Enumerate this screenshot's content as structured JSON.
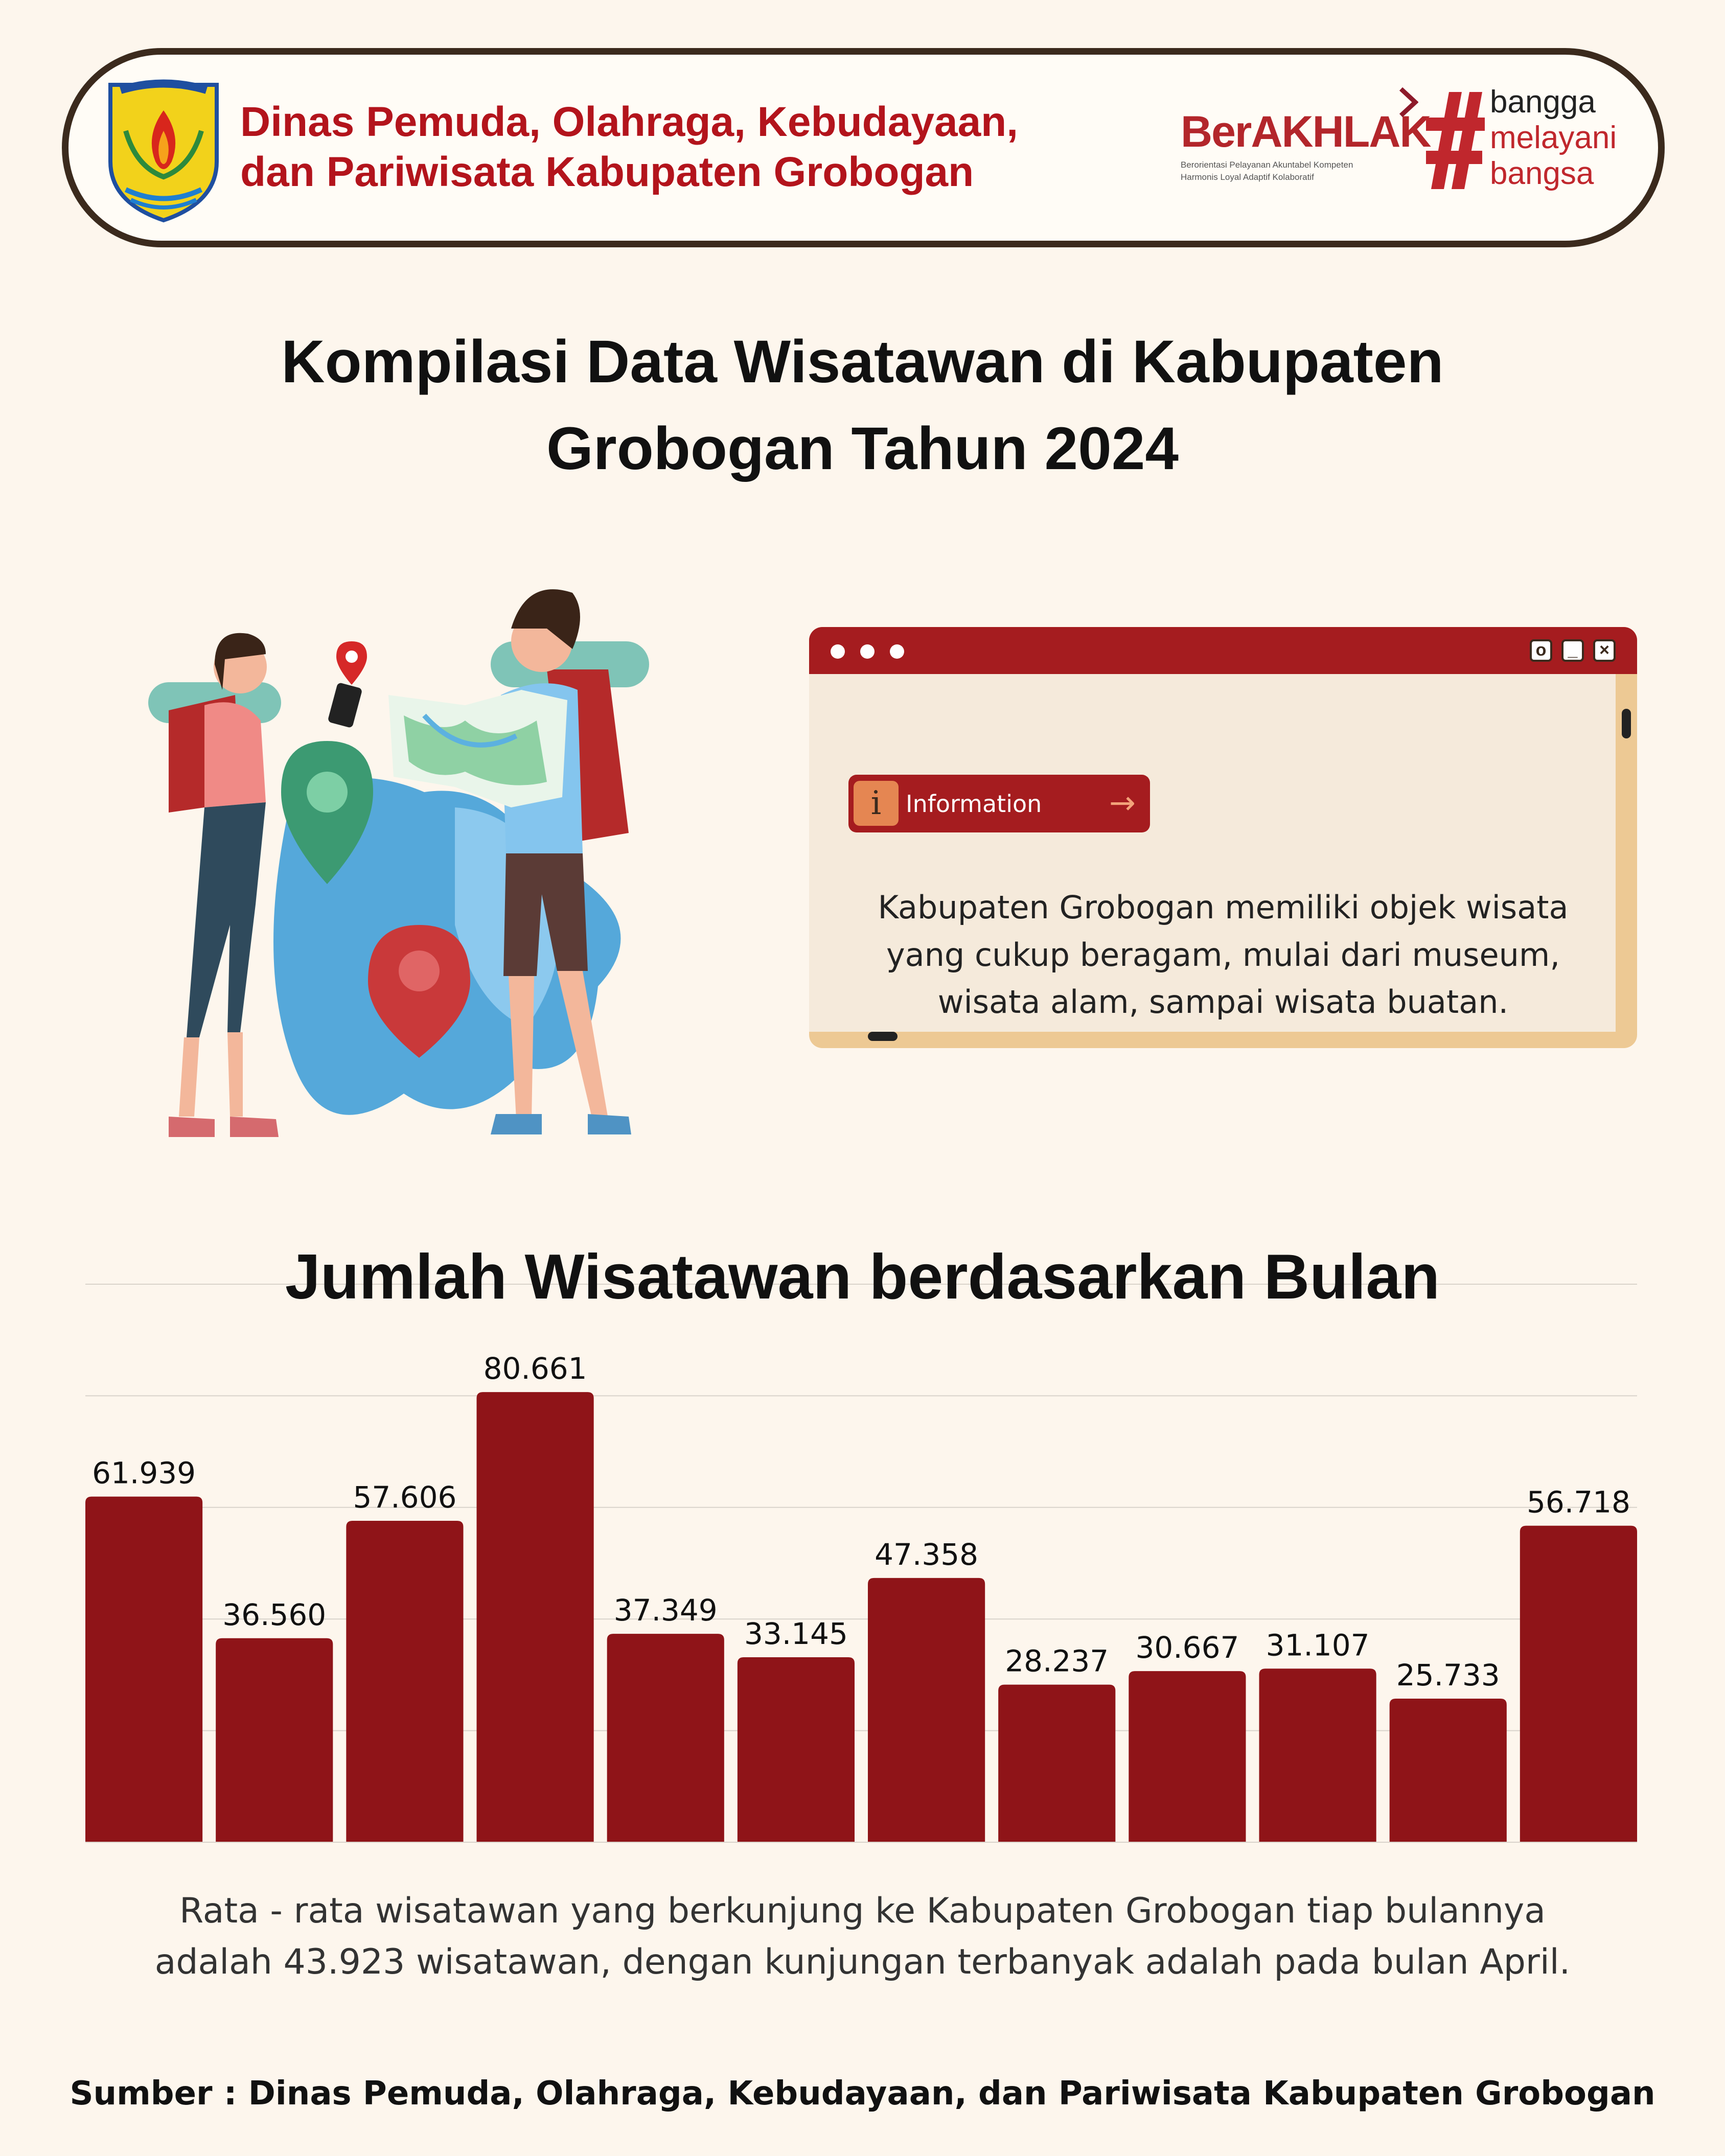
{
  "header": {
    "agency_line1": "Dinas Pemuda, Olahraga, Kebudayaan,",
    "agency_line2": "dan Pariwisata Kabupaten Grobogan",
    "logo_text": "KABUPATEN GROBOGAN",
    "berakhlak": "BerAKHLAK",
    "berakhlak_tagline1": "Berorientasi Pelayanan Akuntabel Kompeten",
    "berakhlak_tagline2": "Harmonis Loyal Adaptif Kolaboratif",
    "bangga": [
      "bangga",
      "melayani",
      "bangsa"
    ]
  },
  "title": {
    "line1": "Kompilasi Data Wisatawan di Kabupaten",
    "line2": "Grobogan Tahun 2024"
  },
  "info_window": {
    "badge_label": "Information",
    "badge_icon": "i",
    "controls": [
      "circle-icon",
      "minimize-icon",
      "close-icon"
    ],
    "body_lines": [
      "Kabupaten Grobogan memiliki objek wisata",
      "yang cukup beragam, mulai dari museum,",
      "wisata alam, sampai wisata buatan."
    ]
  },
  "colors": {
    "bar": "#8f1418",
    "accent": "#a51c1f",
    "header_text": "#b3141c",
    "background": "#fdf6ed"
  },
  "chart_data": {
    "type": "bar",
    "title": "Jumlah Wisatawan berdasarkan Bulan",
    "values": [
      61939,
      36560,
      57606,
      80661,
      37349,
      33145,
      47358,
      28237,
      30667,
      31107,
      25733,
      56718
    ],
    "data_labels": [
      "61.939",
      "36.560",
      "57.606",
      "80.661",
      "37.349",
      "33.145",
      "47.358",
      "28.237",
      "30.667",
      "31.107",
      "25.733",
      "56.718"
    ],
    "ylim": [
      0,
      100000
    ],
    "grid": true,
    "gridline_step": 20000
  },
  "footer": {
    "summary_line1": "Rata - rata wisatawan yang berkunjung ke Kabupaten Grobogan tiap bulannya",
    "summary_line2": "adalah 43.923 wisatawan, dengan kunjungan terbanyak adalah pada bulan April.",
    "source": "Sumber : Dinas Pemuda, Olahraga, Kebudayaan, dan Pariwisata Kabupaten Grobogan"
  }
}
